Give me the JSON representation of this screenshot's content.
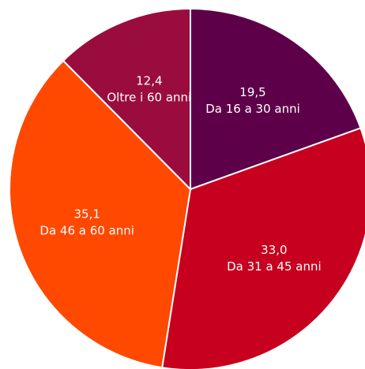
{
  "chart_data": {
    "type": "pie",
    "categories": [
      "Da 16 a 30 anni",
      "Da 31 a 45 anni",
      "Da 46 a 60 anni",
      "Oltre i 60 anni"
    ],
    "values": [
      19.5,
      33.0,
      35.1,
      12.4
    ],
    "value_labels": [
      "19,5",
      "33,0",
      "35,1",
      "12,4"
    ],
    "colors": [
      "#5e0049",
      "#c6001e",
      "#ff4800",
      "#9b0c3e"
    ]
  }
}
